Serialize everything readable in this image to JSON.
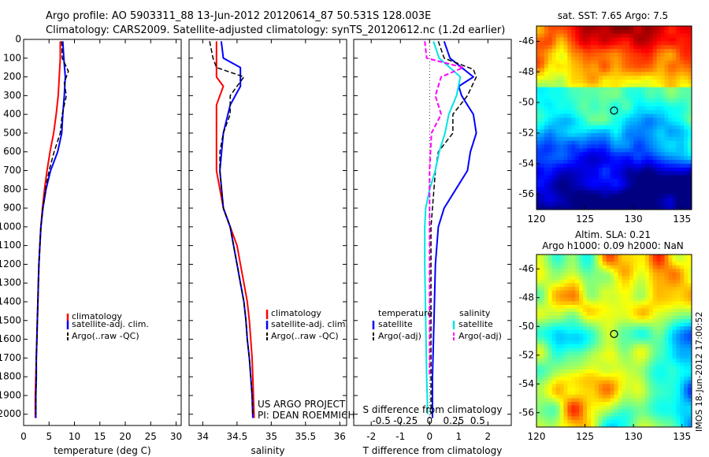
{
  "title_line1": "Argo profile: AO 5903311_88 13-Jun-2012 20120614_87 50.531S 128.003E",
  "title_line2": "Climatology: CARS2009. Satellite-adjusted climatology: synTS_20120612.nc (1.2d earlier)",
  "project_line1": "US ARGO PROJECT",
  "project_line2": "PI: DEAN ROEMMICH",
  "timestamp": "IMOS 18-Jun-2012 17:00:52",
  "colors": {
    "climatology": "#ff0000",
    "satellite": "#0000ff",
    "argo": "#000000",
    "cyan": "#00e5e5",
    "magenta": "#ff00ff"
  },
  "chart_data": [
    {
      "type": "line",
      "id": "temperature",
      "xlabel": "temperature (deg C)",
      "ylabel": "",
      "xlim": [
        0,
        31
      ],
      "ylim": [
        0,
        2060
      ],
      "xticks": [
        0,
        5,
        10,
        15,
        20,
        25,
        30
      ],
      "yticks": [
        0,
        100,
        200,
        300,
        400,
        500,
        600,
        700,
        800,
        900,
        1000,
        1100,
        1200,
        1300,
        1400,
        1500,
        1600,
        1700,
        1800,
        1900,
        2000
      ],
      "y_reversed": true,
      "legend": [
        {
          "label": "climatology",
          "color": "#ff0000",
          "dash": false
        },
        {
          "label": "satellite-adj. clim.",
          "color": "#0000ff",
          "dash": false
        },
        {
          "label": "Argo(..raw -QC)",
          "color": "#000000",
          "dash": true
        }
      ],
      "series": [
        {
          "name": "climatology",
          "color": "#ff0000",
          "dash": false,
          "width": 2,
          "points": [
            [
              7.2,
              10
            ],
            [
              7.2,
              100
            ],
            [
              7.0,
              200
            ],
            [
              6.8,
              300
            ],
            [
              6.4,
              400
            ],
            [
              5.9,
              500
            ],
            [
              5.2,
              600
            ],
            [
              4.6,
              700
            ],
            [
              4.1,
              800
            ],
            [
              3.7,
              900
            ],
            [
              3.4,
              1000
            ],
            [
              3.2,
              1100
            ],
            [
              3.0,
              1200
            ],
            [
              2.9,
              1300
            ],
            [
              2.8,
              1400
            ],
            [
              2.7,
              1500
            ],
            [
              2.6,
              1600
            ],
            [
              2.5,
              1700
            ],
            [
              2.4,
              1800
            ],
            [
              2.3,
              1900
            ],
            [
              2.3,
              2020
            ]
          ]
        },
        {
          "name": "satellite-adj. clim.",
          "color": "#0000ff",
          "dash": false,
          "width": 2,
          "points": [
            [
              7.7,
              10
            ],
            [
              7.9,
              100
            ],
            [
              8.2,
              200
            ],
            [
              8.0,
              300
            ],
            [
              7.7,
              400
            ],
            [
              7.5,
              500
            ],
            [
              6.7,
              600
            ],
            [
              5.3,
              700
            ],
            [
              4.4,
              800
            ],
            [
              3.8,
              900
            ],
            [
              3.4,
              1000
            ],
            [
              3.2,
              1100
            ],
            [
              3.0,
              1200
            ],
            [
              2.9,
              1300
            ],
            [
              2.8,
              1400
            ],
            [
              2.7,
              1500
            ],
            [
              2.6,
              1600
            ],
            [
              2.5,
              1700
            ],
            [
              2.5,
              1800
            ],
            [
              2.4,
              1900
            ],
            [
              2.4,
              2020
            ]
          ]
        },
        {
          "name": "Argo(..raw -QC)",
          "color": "#000000",
          "dash": true,
          "width": 1.5,
          "points": [
            [
              7.5,
              10
            ],
            [
              7.6,
              100
            ],
            [
              8.8,
              170
            ],
            [
              8.0,
              230
            ],
            [
              8.4,
              300
            ],
            [
              7.6,
              400
            ],
            [
              7.2,
              500
            ],
            [
              6.0,
              600
            ],
            [
              5.0,
              700
            ],
            [
              4.3,
              800
            ],
            [
              3.8,
              900
            ],
            [
              3.4,
              1000
            ],
            [
              3.2,
              1100
            ],
            [
              3.0,
              1200
            ],
            [
              2.9,
              1300
            ],
            [
              2.8,
              1400
            ],
            [
              2.7,
              1500
            ],
            [
              2.6,
              1600
            ],
            [
              2.5,
              1700
            ],
            [
              2.5,
              1800
            ],
            [
              2.4,
              1900
            ],
            [
              2.4,
              2000
            ]
          ]
        }
      ]
    },
    {
      "type": "line",
      "id": "salinity",
      "xlabel": "salinity",
      "ylabel": "",
      "xlim": [
        33.8,
        36.1
      ],
      "ylim": [
        0,
        2060
      ],
      "xticks": [
        34,
        34.5,
        35,
        35.5,
        36
      ],
      "y_reversed": true,
      "legend": [
        {
          "label": "climatology",
          "color": "#ff0000",
          "dash": false
        },
        {
          "label": "satellite-adj. clim.",
          "color": "#0000ff",
          "dash": false
        },
        {
          "label": "Argo(..raw -QC)",
          "color": "#000000",
          "dash": true
        }
      ],
      "series": [
        {
          "name": "climatology",
          "color": "#ff0000",
          "dash": false,
          "width": 2,
          "points": [
            [
              34.2,
              10
            ],
            [
              34.2,
              100
            ],
            [
              34.2,
              200
            ],
            [
              34.3,
              250
            ],
            [
              34.2,
              350
            ],
            [
              34.2,
              500
            ],
            [
              34.2,
              700
            ],
            [
              34.3,
              900
            ],
            [
              34.4,
              1000
            ],
            [
              34.5,
              1100
            ],
            [
              34.55,
              1200
            ],
            [
              34.6,
              1300
            ],
            [
              34.65,
              1400
            ],
            [
              34.68,
              1500
            ],
            [
              34.7,
              1600
            ],
            [
              34.72,
              1700
            ],
            [
              34.73,
              1800
            ],
            [
              34.74,
              1900
            ],
            [
              34.75,
              2020
            ]
          ]
        },
        {
          "name": "satellite-adj. clim.",
          "color": "#0000ff",
          "dash": false,
          "width": 2,
          "points": [
            [
              34.27,
              10
            ],
            [
              34.3,
              100
            ],
            [
              34.55,
              150
            ],
            [
              34.55,
              250
            ],
            [
              34.4,
              350
            ],
            [
              34.3,
              500
            ],
            [
              34.25,
              700
            ],
            [
              34.3,
              900
            ],
            [
              34.4,
              1000
            ],
            [
              34.45,
              1100
            ],
            [
              34.5,
              1200
            ],
            [
              34.55,
              1300
            ],
            [
              34.6,
              1400
            ],
            [
              34.63,
              1500
            ],
            [
              34.65,
              1600
            ],
            [
              34.68,
              1700
            ],
            [
              34.7,
              1800
            ],
            [
              34.72,
              1900
            ],
            [
              34.73,
              2020
            ]
          ]
        },
        {
          "name": "Argo(..raw -QC)",
          "color": "#000000",
          "dash": true,
          "width": 1.5,
          "points": [
            [
              34.1,
              10
            ],
            [
              34.15,
              100
            ],
            [
              34.2,
              150
            ],
            [
              34.6,
              200
            ],
            [
              34.4,
              300
            ],
            [
              34.4,
              400
            ],
            [
              34.3,
              500
            ],
            [
              34.25,
              600
            ],
            [
              34.25,
              700
            ],
            [
              34.3,
              900
            ],
            [
              34.4,
              1000
            ],
            [
              34.45,
              1100
            ],
            [
              34.5,
              1200
            ],
            [
              34.55,
              1300
            ],
            [
              34.6,
              1400
            ],
            [
              34.63,
              1500
            ],
            [
              34.65,
              1600
            ],
            [
              34.68,
              1700
            ],
            [
              34.7,
              1800
            ],
            [
              34.72,
              1900
            ],
            [
              34.73,
              2000
            ]
          ]
        }
      ]
    },
    {
      "type": "line",
      "id": "difference",
      "xlabel": "T difference from climatology",
      "top_xlabel": "S difference from climatology",
      "ylabel": "",
      "xlim": [
        -2.6,
        2.8
      ],
      "ylim": [
        0,
        2060
      ],
      "xticks": [
        -2,
        -1,
        0,
        1,
        2
      ],
      "top_xticks": [
        -0.5,
        -0.25,
        0,
        0.25,
        0.5
      ],
      "top_ticklabels": [
        "-0.5",
        "-0.25",
        "0",
        "0.25",
        "0.5"
      ],
      "y_reversed": true,
      "legend_title_left": "temperature",
      "legend_title_right": "salinity",
      "legend": [
        {
          "label": "satellite",
          "color": "#0000ff",
          "dash": false,
          "col": "left"
        },
        {
          "label": "Argo(-adj)",
          "color": "#000000",
          "dash": true,
          "col": "left"
        },
        {
          "label": "satellite",
          "color": "#00e5e5",
          "dash": false,
          "col": "right"
        },
        {
          "label": "Argo(-adj)",
          "color": "#ff00ff",
          "dash": true,
          "col": "right"
        }
      ],
      "series": [
        {
          "name": "T satellite",
          "color": "#0000ff",
          "dash": false,
          "width": 2,
          "points": [
            [
              0.5,
              10
            ],
            [
              0.7,
              100
            ],
            [
              1.5,
              200
            ],
            [
              1.0,
              250
            ],
            [
              1.1,
              300
            ],
            [
              1.3,
              350
            ],
            [
              1.5,
              400
            ],
            [
              1.6,
              500
            ],
            [
              1.4,
              600
            ],
            [
              1.3,
              700
            ],
            [
              0.9,
              800
            ],
            [
              0.5,
              900
            ],
            [
              0.3,
              1000
            ],
            [
              0.2,
              1200
            ],
            [
              0.15,
              1500
            ],
            [
              0.1,
              1800
            ],
            [
              0.1,
              2020
            ]
          ]
        },
        {
          "name": "T Argo(-adj)",
          "color": "#000000",
          "dash": true,
          "width": 1.5,
          "points": [
            [
              0.3,
              10
            ],
            [
              0.5,
              100
            ],
            [
              1.5,
              160
            ],
            [
              1.6,
              200
            ],
            [
              1.3,
              300
            ],
            [
              0.8,
              400
            ],
            [
              0.8,
              500
            ],
            [
              0.3,
              600
            ],
            [
              0.2,
              700
            ],
            [
              0.1,
              900
            ],
            [
              0.05,
              1000
            ],
            [
              0.05,
              1300
            ],
            [
              0.05,
              1600
            ],
            [
              0.05,
              2000
            ]
          ]
        },
        {
          "name": "S satellite",
          "color": "#00e5e5",
          "dash": false,
          "width": 2,
          "points": [
            [
              0.04,
              10
            ],
            [
              0.1,
              100
            ],
            [
              0.32,
              200
            ],
            [
              0.28,
              300
            ],
            [
              0.2,
              400
            ],
            [
              0.16,
              500
            ],
            [
              0.1,
              600
            ],
            [
              0.06,
              700
            ],
            [
              0.0,
              800
            ],
            [
              -0.04,
              900
            ],
            [
              -0.05,
              1000
            ],
            [
              -0.05,
              1200
            ],
            [
              -0.04,
              1500
            ],
            [
              -0.03,
              1800
            ],
            [
              -0.02,
              2000
            ]
          ]
        },
        {
          "name": "S Argo(-adj)",
          "color": "#ff00ff",
          "dash": true,
          "width": 2,
          "points": [
            [
              -0.05,
              10
            ],
            [
              -0.03,
              100
            ],
            [
              0.35,
              150
            ],
            [
              0.12,
              200
            ],
            [
              0.06,
              300
            ],
            [
              0.12,
              400
            ],
            [
              0.02,
              500
            ],
            [
              0.01,
              600
            ],
            [
              0.0,
              700
            ],
            [
              0.0,
              900
            ],
            [
              0.0,
              1000
            ],
            [
              0.0,
              1300
            ],
            [
              0.0,
              1600
            ],
            [
              0.0,
              1800
            ]
          ]
        }
      ]
    },
    {
      "type": "heatmap",
      "id": "sst_map",
      "title": "sat. SST: 7.65 Argo: 7.5",
      "xlim": [
        120,
        136
      ],
      "ylim": [
        -57,
        -45
      ],
      "xticks": [
        120,
        125,
        130,
        135
      ],
      "yticks": [
        -46,
        -48,
        -50,
        -52,
        -54,
        -56
      ],
      "marker": [
        128.003,
        -50.531
      ]
    },
    {
      "type": "heatmap",
      "id": "sla_map",
      "title_line1": "Altim. SLA: 0.21",
      "title_line2": "Argo h1000: 0.09 h2000: NaN",
      "xlim": [
        120,
        136
      ],
      "ylim": [
        -57,
        -45
      ],
      "xticks": [
        120,
        125,
        130,
        135
      ],
      "yticks": [
        -46,
        -48,
        -50,
        -52,
        -54,
        -56
      ],
      "marker": [
        128.003,
        -50.531
      ]
    }
  ]
}
